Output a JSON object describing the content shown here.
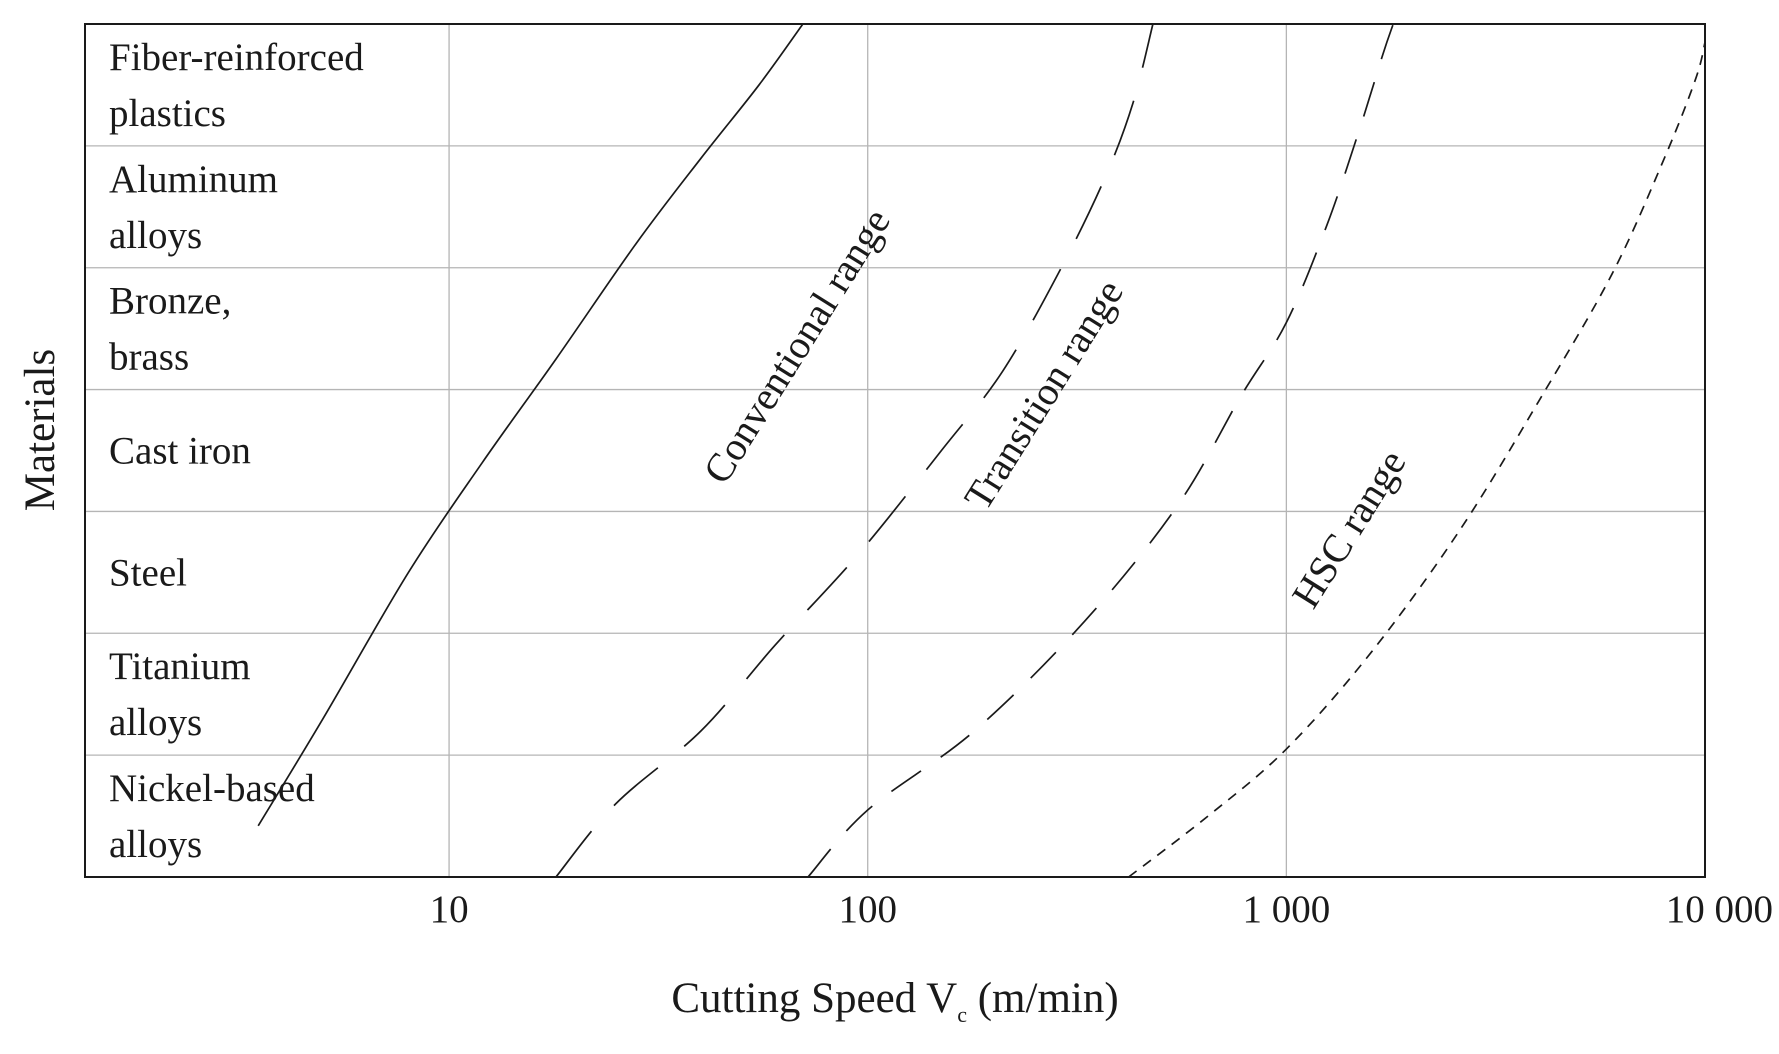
{
  "chart_data": {
    "type": "line",
    "xscale": "log",
    "xlim": [
      1.35,
      10000
    ],
    "xticks": [
      {
        "value": 10,
        "label": "10"
      },
      {
        "value": 100,
        "label": "100"
      },
      {
        "value": 1000,
        "label": "1 000"
      },
      {
        "value": 10000,
        "label": "10 000"
      }
    ],
    "xlabel": {
      "main": "Cutting Speed V",
      "sub": "c",
      "unit": " (m/min)"
    },
    "ylabel": "Materials",
    "grid": true,
    "categories": [
      {
        "lines": [
          "Fiber-reinforced",
          "plastics"
        ]
      },
      {
        "lines": [
          "Aluminum",
          "alloys"
        ]
      },
      {
        "lines": [
          "Bronze,",
          "brass"
        ]
      },
      {
        "lines": [
          "Cast iron"
        ]
      },
      {
        "lines": [
          "Steel"
        ]
      },
      {
        "lines": [
          "Titanium",
          "alloys"
        ]
      },
      {
        "lines": [
          "Nickel-based",
          "alloys"
        ]
      }
    ],
    "series": [
      {
        "name": "lower-bound",
        "style": "solid",
        "points": [
          [
            3.5,
            0.42
          ],
          [
            5,
            1.3
          ],
          [
            8,
            2.5
          ],
          [
            12,
            3.4
          ],
          [
            18,
            4.25
          ],
          [
            28,
            5.2
          ],
          [
            40,
            5.9
          ],
          [
            55,
            6.5
          ],
          [
            70,
            7.0
          ]
        ]
      },
      {
        "name": "conventional-transition-boundary",
        "style": "long-dash",
        "points": [
          [
            18,
            0
          ],
          [
            25,
            0.6
          ],
          [
            40,
            1.2
          ],
          [
            60,
            1.9
          ],
          [
            95,
            2.65
          ],
          [
            150,
            3.5
          ],
          [
            210,
            4.15
          ],
          [
            290,
            5.0
          ],
          [
            370,
            5.75
          ],
          [
            430,
            6.35
          ],
          [
            480,
            7.0
          ]
        ]
      },
      {
        "name": "transition-hsc-boundary",
        "style": "medium-dash",
        "points": [
          [
            72,
            0
          ],
          [
            100,
            0.55
          ],
          [
            180,
            1.2
          ],
          [
            330,
            2.1
          ],
          [
            550,
            3.05
          ],
          [
            780,
            3.95
          ],
          [
            1000,
            4.55
          ],
          [
            1250,
            5.35
          ],
          [
            1500,
            6.15
          ],
          [
            1700,
            6.75
          ],
          [
            1800,
            7.0
          ]
        ]
      },
      {
        "name": "hsc-upper-bound",
        "style": "short-dash",
        "points": [
          [
            420,
            0
          ],
          [
            650,
            0.5
          ],
          [
            1000,
            1.05
          ],
          [
            1600,
            1.85
          ],
          [
            2600,
            2.85
          ],
          [
            4000,
            3.9
          ],
          [
            6000,
            4.95
          ],
          [
            8000,
            5.9
          ],
          [
            9500,
            6.55
          ],
          [
            10000,
            6.85
          ]
        ]
      }
    ],
    "annotations": [
      {
        "text": "Conventional range",
        "x": 72,
        "y": 4.3,
        "angle": -58
      },
      {
        "text": "Transition range",
        "x": 280,
        "y": 3.9,
        "angle": -58
      },
      {
        "text": "HSC range",
        "x": 1500,
        "y": 2.8,
        "angle": -58
      }
    ]
  }
}
